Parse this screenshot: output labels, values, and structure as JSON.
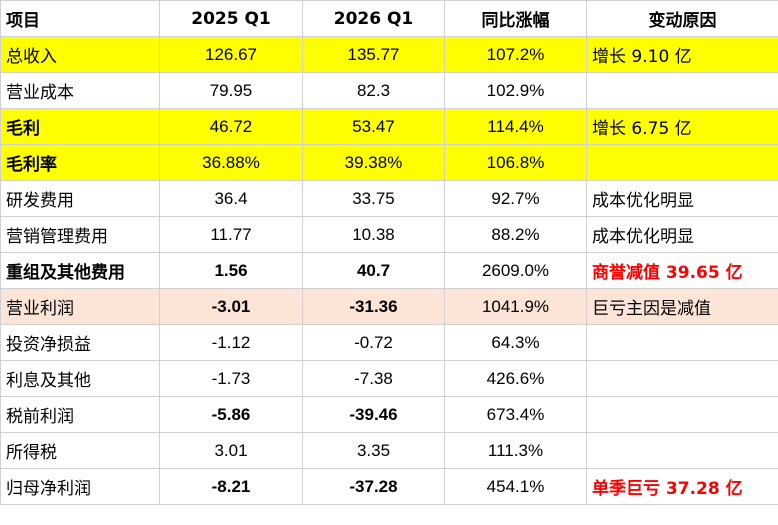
{
  "table": {
    "headers": [
      "项目",
      "2025 Q1",
      "2026 Q1",
      "同比涨幅",
      "变动原因"
    ],
    "rows": [
      {
        "item": "总收入",
        "q1_2025": "126.67",
        "q1_2026": "135.77",
        "yoy": "107.2%",
        "reason": "增长 9.10 亿"
      },
      {
        "item": "营业成本",
        "q1_2025": "79.95",
        "q1_2026": "82.3",
        "yoy": "102.9%",
        "reason": ""
      },
      {
        "item": "毛利",
        "q1_2025": "46.72",
        "q1_2026": "53.47",
        "yoy": "114.4%",
        "reason": "增长 6.75 亿"
      },
      {
        "item": "毛利率",
        "q1_2025": "36.88%",
        "q1_2026": "39.38%",
        "yoy": "106.8%",
        "reason": ""
      },
      {
        "item": "研发费用",
        "q1_2025": "36.4",
        "q1_2026": "33.75",
        "yoy": "92.7%",
        "reason": "成本优化明显"
      },
      {
        "item": "营销管理费用",
        "q1_2025": "11.77",
        "q1_2026": "10.38",
        "yoy": "88.2%",
        "reason": "成本优化明显"
      },
      {
        "item": "重组及其他费用",
        "q1_2025": "1.56",
        "q1_2026": "40.7",
        "yoy": "2609.0%",
        "reason": "商誉减值 39.65 亿"
      },
      {
        "item": "营业利润",
        "q1_2025": "-3.01",
        "q1_2026": "-31.36",
        "yoy": "1041.9%",
        "reason": "巨亏主因是减值"
      },
      {
        "item": "投资净损益",
        "q1_2025": "-1.12",
        "q1_2026": "-0.72",
        "yoy": "64.3%",
        "reason": ""
      },
      {
        "item": "利息及其他",
        "q1_2025": "-1.73",
        "q1_2026": "-7.38",
        "yoy": "426.6%",
        "reason": ""
      },
      {
        "item": "税前利润",
        "q1_2025": "-5.86",
        "q1_2026": "-39.46",
        "yoy": "673.4%",
        "reason": ""
      },
      {
        "item": "所得税",
        "q1_2025": "3.01",
        "q1_2026": "3.35",
        "yoy": "111.3%",
        "reason": ""
      },
      {
        "item": "归母净利润",
        "q1_2025": "-8.21",
        "q1_2026": "-37.28",
        "yoy": "454.1%",
        "reason": "单季巨亏 37.28 亿"
      }
    ]
  },
  "colors": {
    "highlight_yellow": "#ffff00",
    "highlight_pink": "#fce4d6",
    "alert_red": "#ff0000"
  }
}
